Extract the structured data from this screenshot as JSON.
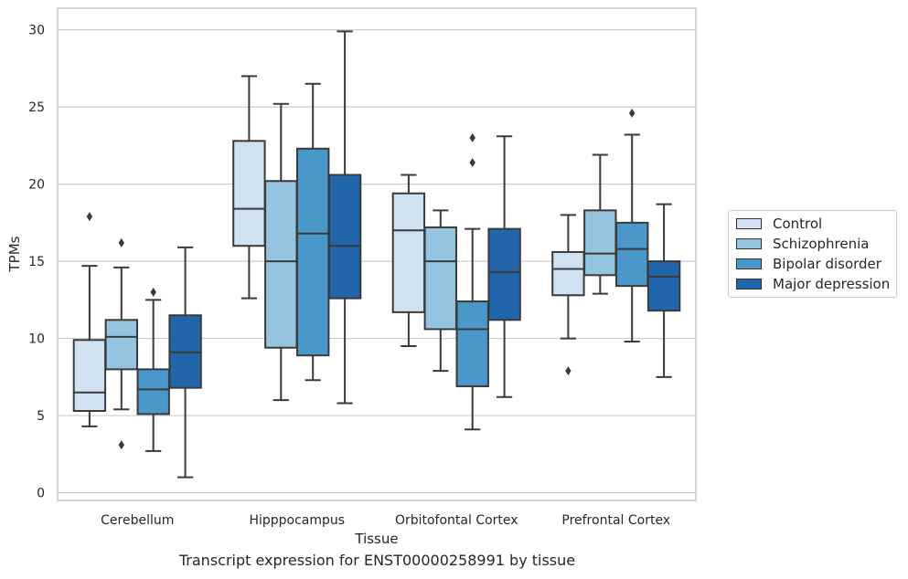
{
  "caption": "Transcript expression for ENST00000258991 by tissue",
  "chart_data": {
    "type": "box",
    "title": "",
    "xlabel": "Tissue",
    "ylabel": "TPMs",
    "ylim": [
      -0.5,
      31.4
    ],
    "yticks": [
      0,
      5,
      10,
      15,
      20,
      25,
      30
    ],
    "grid": "horizontal",
    "legend_position": "outside-right",
    "categories": [
      "Cerebellum",
      "Hipppocampus",
      "Orbitofontal Cortex",
      "Prefrontal Cortex"
    ],
    "series": [
      {
        "name": "Control",
        "color": "#d0e1f2",
        "boxes": [
          {
            "whisker_low": 4.3,
            "q1": 5.3,
            "median": 6.5,
            "q3": 9.9,
            "whisker_high": 14.7,
            "outliers": [
              17.9
            ]
          },
          {
            "whisker_low": 12.6,
            "q1": 16.0,
            "median": 18.4,
            "q3": 22.8,
            "whisker_high": 27.0,
            "outliers": []
          },
          {
            "whisker_low": 9.5,
            "q1": 11.7,
            "median": 17.0,
            "q3": 19.4,
            "whisker_high": 20.6,
            "outliers": []
          },
          {
            "whisker_low": 10.0,
            "q1": 12.8,
            "median": 14.5,
            "q3": 15.6,
            "whisker_high": 18.0,
            "outliers": [
              7.9
            ]
          }
        ]
      },
      {
        "name": "Schizophrenia",
        "color": "#94c4df",
        "boxes": [
          {
            "whisker_low": 5.4,
            "q1": 8.0,
            "median": 10.1,
            "q3": 11.2,
            "whisker_high": 14.6,
            "outliers": [
              16.2,
              3.1
            ]
          },
          {
            "whisker_low": 6.0,
            "q1": 9.4,
            "median": 15.0,
            "q3": 20.2,
            "whisker_high": 25.2,
            "outliers": []
          },
          {
            "whisker_low": 7.9,
            "q1": 10.6,
            "median": 15.0,
            "q3": 17.2,
            "whisker_high": 18.3,
            "outliers": []
          },
          {
            "whisker_low": 12.9,
            "q1": 14.1,
            "median": 15.5,
            "q3": 18.3,
            "whisker_high": 21.9,
            "outliers": []
          }
        ]
      },
      {
        "name": "Bipolar disorder",
        "color": "#4a98c9",
        "boxes": [
          {
            "whisker_low": 2.7,
            "q1": 5.1,
            "median": 6.7,
            "q3": 8.0,
            "whisker_high": 12.5,
            "outliers": [
              13.0
            ]
          },
          {
            "whisker_low": 7.3,
            "q1": 8.9,
            "median": 16.8,
            "q3": 22.3,
            "whisker_high": 26.5,
            "outliers": []
          },
          {
            "whisker_low": 4.1,
            "q1": 6.9,
            "median": 10.6,
            "q3": 12.4,
            "whisker_high": 17.1,
            "outliers": [
              23.0,
              21.4
            ]
          },
          {
            "whisker_low": 9.8,
            "q1": 13.4,
            "median": 15.8,
            "q3": 17.5,
            "whisker_high": 23.2,
            "outliers": [
              24.6
            ]
          }
        ]
      },
      {
        "name": "Major depression",
        "color": "#2165ab",
        "boxes": [
          {
            "whisker_low": 1.0,
            "q1": 6.8,
            "median": 9.1,
            "q3": 11.5,
            "whisker_high": 15.9,
            "outliers": []
          },
          {
            "whisker_low": 5.8,
            "q1": 12.6,
            "median": 16.0,
            "q3": 20.6,
            "whisker_high": 29.9,
            "outliers": []
          },
          {
            "whisker_low": 6.2,
            "q1": 11.2,
            "median": 14.3,
            "q3": 17.1,
            "whisker_high": 23.1,
            "outliers": []
          },
          {
            "whisker_low": 7.5,
            "q1": 11.8,
            "median": 14.0,
            "q3": 15.0,
            "whisker_high": 18.7,
            "outliers": []
          }
        ]
      }
    ]
  }
}
